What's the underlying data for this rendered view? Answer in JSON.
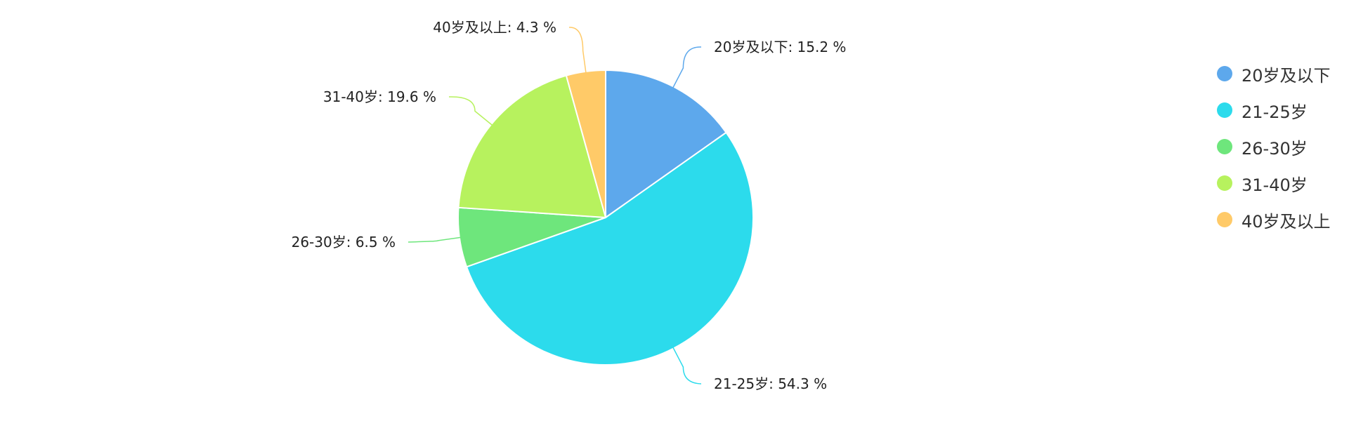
{
  "chart_data": {
    "type": "pie",
    "categories": [
      "20岁及以下",
      "21-25岁",
      "26-30岁",
      "31-40岁",
      "40岁及以上"
    ],
    "values": [
      15.2,
      54.3,
      6.5,
      19.6,
      4.3
    ],
    "unit": "%",
    "labels": [
      "20岁及以下: 15.2 %",
      "21-25岁: 54.3 %",
      "26-30岁: 6.5 %",
      "31-40岁: 19.6 %",
      "40岁及以上: 4.3 %"
    ],
    "colors": [
      "#5DA8EC",
      "#2CDBEC",
      "#6EE67C",
      "#B7F25E",
      "#FFCA68"
    ],
    "legend_position": "right",
    "start_angle": "top, clockwise"
  },
  "legend": {
    "items": [
      {
        "label": "20岁及以下",
        "color": "#5DA8EC"
      },
      {
        "label": "21-25岁",
        "color": "#2CDBEC"
      },
      {
        "label": "26-30岁",
        "color": "#6EE67C"
      },
      {
        "label": "31-40岁",
        "color": "#B7F25E"
      },
      {
        "label": "40岁及以上",
        "color": "#FFCA68"
      }
    ]
  }
}
